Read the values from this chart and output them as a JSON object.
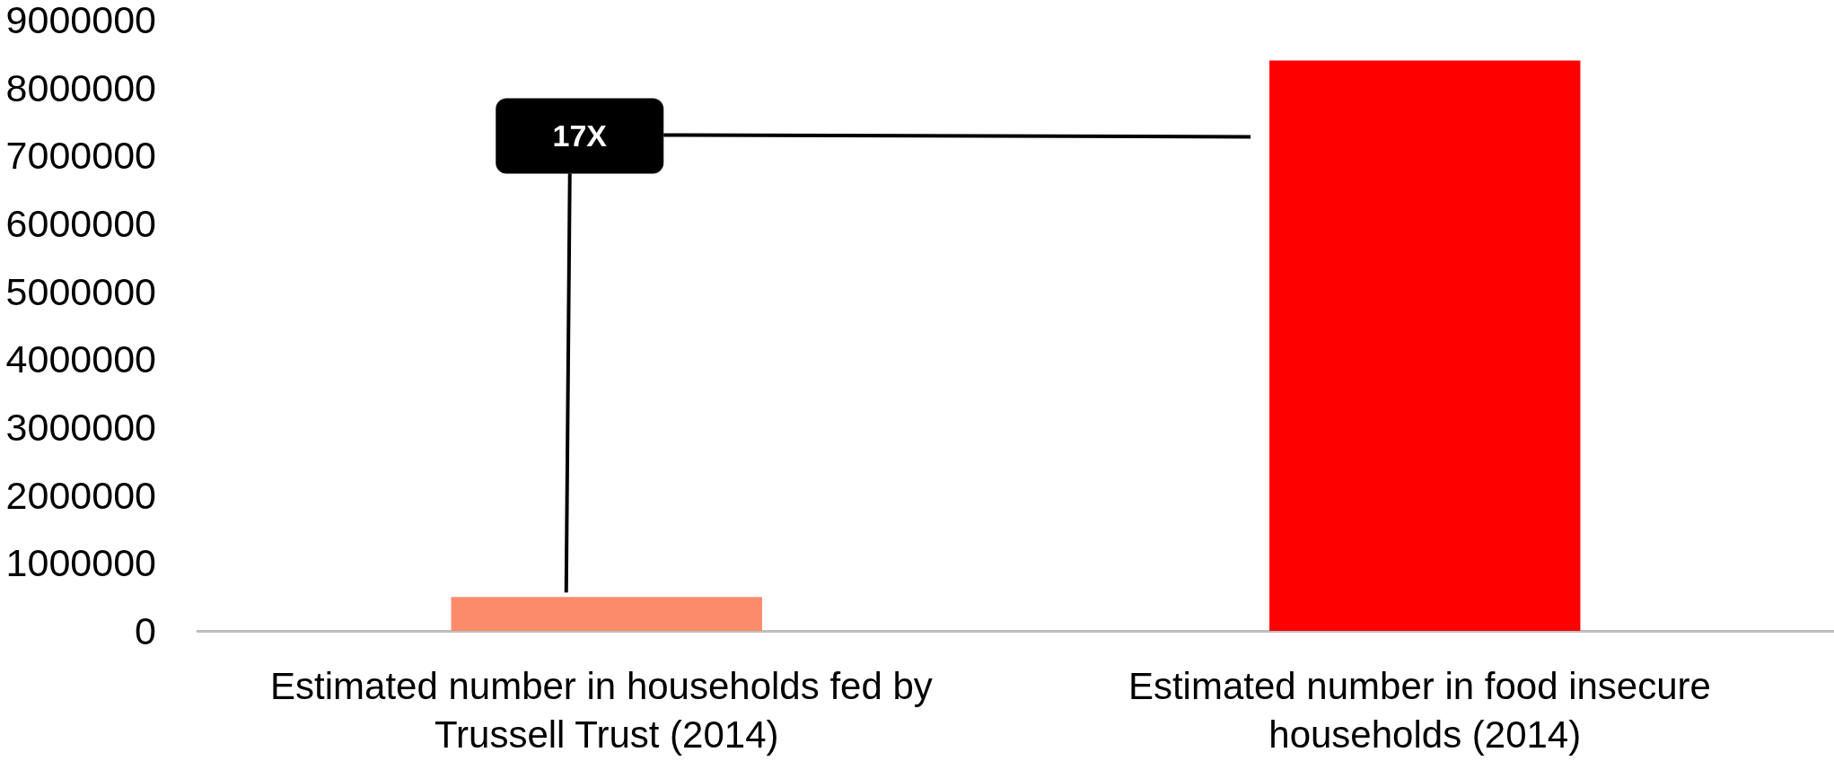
{
  "chart_data": {
    "type": "bar",
    "categories": [
      "Estimated number in households fed by Trussell Trust (2014)",
      "Estimated number in food insecure households (2014)"
    ],
    "values": [
      500000,
      8400000
    ],
    "colors": [
      "#fc8b6c",
      "#ff0000"
    ],
    "ylim": [
      0,
      9000000
    ],
    "yticks": [
      0,
      1000000,
      2000000,
      3000000,
      4000000,
      5000000,
      6000000,
      7000000,
      8000000,
      9000000
    ],
    "annotations": [
      "17X"
    ]
  }
}
